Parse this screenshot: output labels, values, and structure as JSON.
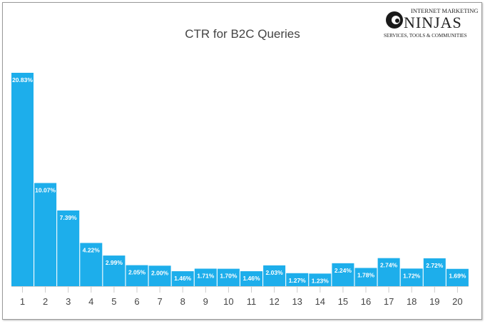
{
  "chart_data": {
    "type": "bar",
    "title": "CTR for B2C Queries",
    "categories": [
      "1",
      "2",
      "3",
      "4",
      "5",
      "6",
      "7",
      "8",
      "9",
      "10",
      "11",
      "12",
      "13",
      "14",
      "15",
      "16",
      "17",
      "18",
      "19",
      "20"
    ],
    "values": [
      20.83,
      10.07,
      7.39,
      4.22,
      2.99,
      2.05,
      2.0,
      1.46,
      1.71,
      1.7,
      1.46,
      2.03,
      1.27,
      1.23,
      2.24,
      1.78,
      2.74,
      1.72,
      2.72,
      1.69
    ],
    "data_labels": [
      "20.83%",
      "10.07%",
      "7.39%",
      "4.22%",
      "2.99%",
      "2.05%",
      "2.00%",
      "1.46%",
      "1.71%",
      "1.70%",
      "1.46%",
      "2.03%",
      "1.27%",
      "1.23%",
      "2.24%",
      "1.78%",
      "2.74%",
      "1.72%",
      "2.72%",
      "1.69%"
    ],
    "xlabel": "",
    "ylabel": "",
    "ylim": [
      0,
      21
    ],
    "grid": false,
    "bar_color": "#1daeeb"
  },
  "logo": {
    "line1": "INTERNET MARKETING",
    "name": "NINJAS",
    "line3": "SERVICES, TOOLS & COMMUNITIES"
  }
}
